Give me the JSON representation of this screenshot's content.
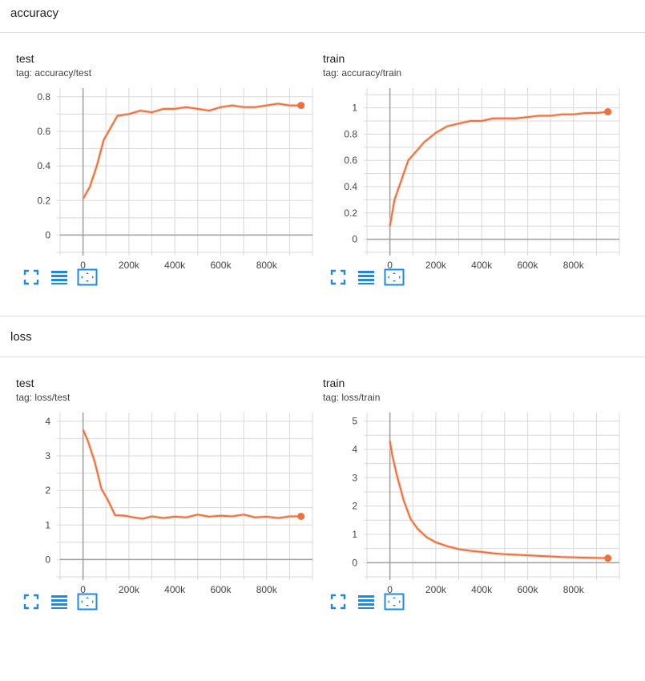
{
  "sections": [
    {
      "title": "accuracy"
    },
    {
      "title": "loss"
    }
  ],
  "colors": {
    "line": "#f06f3c",
    "line_faint": "#f8c9b6",
    "grid": "#d8d8d8",
    "axis": "#9e9e9e",
    "icon": "#1e88e5"
  },
  "icons": [
    "fullscreen-icon",
    "data-table-icon",
    "fit-domain-icon"
  ],
  "chart_data": [
    {
      "type": "line",
      "title": "test",
      "tag": "tag: accuracy/test",
      "x_ticks": [
        "0",
        "200k",
        "400k",
        "600k",
        "800k"
      ],
      "y_ticks": [
        "0",
        "0.2",
        "0.4",
        "0.6",
        "0.8"
      ],
      "xlim": [
        -100000,
        1000000
      ],
      "ylim": [
        -0.1,
        0.85
      ],
      "series": [
        {
          "x": [
            0,
            30000,
            60000,
            90000,
            120000,
            150000,
            200000,
            250000,
            300000,
            350000,
            400000,
            450000,
            500000,
            550000,
            600000,
            650000,
            700000,
            750000,
            800000,
            850000,
            900000,
            950000
          ],
          "y": [
            0.21,
            0.28,
            0.4,
            0.55,
            0.62,
            0.69,
            0.7,
            0.72,
            0.71,
            0.73,
            0.73,
            0.74,
            0.73,
            0.72,
            0.74,
            0.75,
            0.74,
            0.74,
            0.75,
            0.76,
            0.75,
            0.75
          ]
        }
      ]
    },
    {
      "type": "line",
      "title": "train",
      "tag": "tag: accuracy/train",
      "x_ticks": [
        "0",
        "200k",
        "400k",
        "600k",
        "800k"
      ],
      "y_ticks": [
        "0",
        "0.2",
        "0.4",
        "0.6",
        "0.8",
        "1"
      ],
      "xlim": [
        -100000,
        1000000
      ],
      "ylim": [
        -0.1,
        1.15
      ],
      "series": [
        {
          "x": [
            0,
            20000,
            50000,
            80000,
            110000,
            150000,
            200000,
            250000,
            300000,
            350000,
            400000,
            450000,
            500000,
            550000,
            600000,
            650000,
            700000,
            750000,
            800000,
            850000,
            900000,
            950000
          ],
          "y": [
            0.1,
            0.3,
            0.45,
            0.6,
            0.66,
            0.74,
            0.81,
            0.86,
            0.88,
            0.9,
            0.9,
            0.92,
            0.92,
            0.92,
            0.93,
            0.94,
            0.94,
            0.95,
            0.95,
            0.96,
            0.96,
            0.97
          ]
        }
      ]
    },
    {
      "type": "line",
      "title": "test",
      "tag": "tag: loss/test",
      "x_ticks": [
        "0",
        "200k",
        "400k",
        "600k",
        "800k"
      ],
      "y_ticks": [
        "0",
        "1",
        "2",
        "3",
        "4"
      ],
      "xlim": [
        -100000,
        1000000
      ],
      "ylim": [
        -0.5,
        4.25
      ],
      "series": [
        {
          "x": [
            0,
            20000,
            50000,
            80000,
            110000,
            140000,
            180000,
            220000,
            260000,
            300000,
            350000,
            400000,
            450000,
            500000,
            550000,
            600000,
            650000,
            700000,
            750000,
            800000,
            850000,
            900000,
            950000
          ],
          "y": [
            3.75,
            3.45,
            2.85,
            2.05,
            1.7,
            1.28,
            1.27,
            1.22,
            1.18,
            1.25,
            1.2,
            1.24,
            1.22,
            1.3,
            1.24,
            1.27,
            1.25,
            1.3,
            1.22,
            1.24,
            1.2,
            1.25,
            1.25
          ]
        }
      ]
    },
    {
      "type": "line",
      "title": "train",
      "tag": "tag: loss/train",
      "x_ticks": [
        "0",
        "200k",
        "400k",
        "600k",
        "800k"
      ],
      "y_ticks": [
        "0",
        "1",
        "2",
        "3",
        "4",
        "5"
      ],
      "xlim": [
        -100000,
        1000000
      ],
      "ylim": [
        -0.5,
        5.3
      ],
      "series": [
        {
          "x": [
            0,
            10000,
            30000,
            60000,
            90000,
            120000,
            160000,
            200000,
            250000,
            300000,
            350000,
            400000,
            450000,
            500000,
            550000,
            600000,
            650000,
            700000,
            750000,
            800000,
            850000,
            900000,
            950000
          ],
          "y": [
            4.3,
            3.8,
            3.1,
            2.2,
            1.55,
            1.2,
            0.9,
            0.72,
            0.58,
            0.48,
            0.42,
            0.38,
            0.33,
            0.3,
            0.28,
            0.26,
            0.24,
            0.22,
            0.2,
            0.19,
            0.18,
            0.17,
            0.16
          ]
        }
      ]
    }
  ]
}
